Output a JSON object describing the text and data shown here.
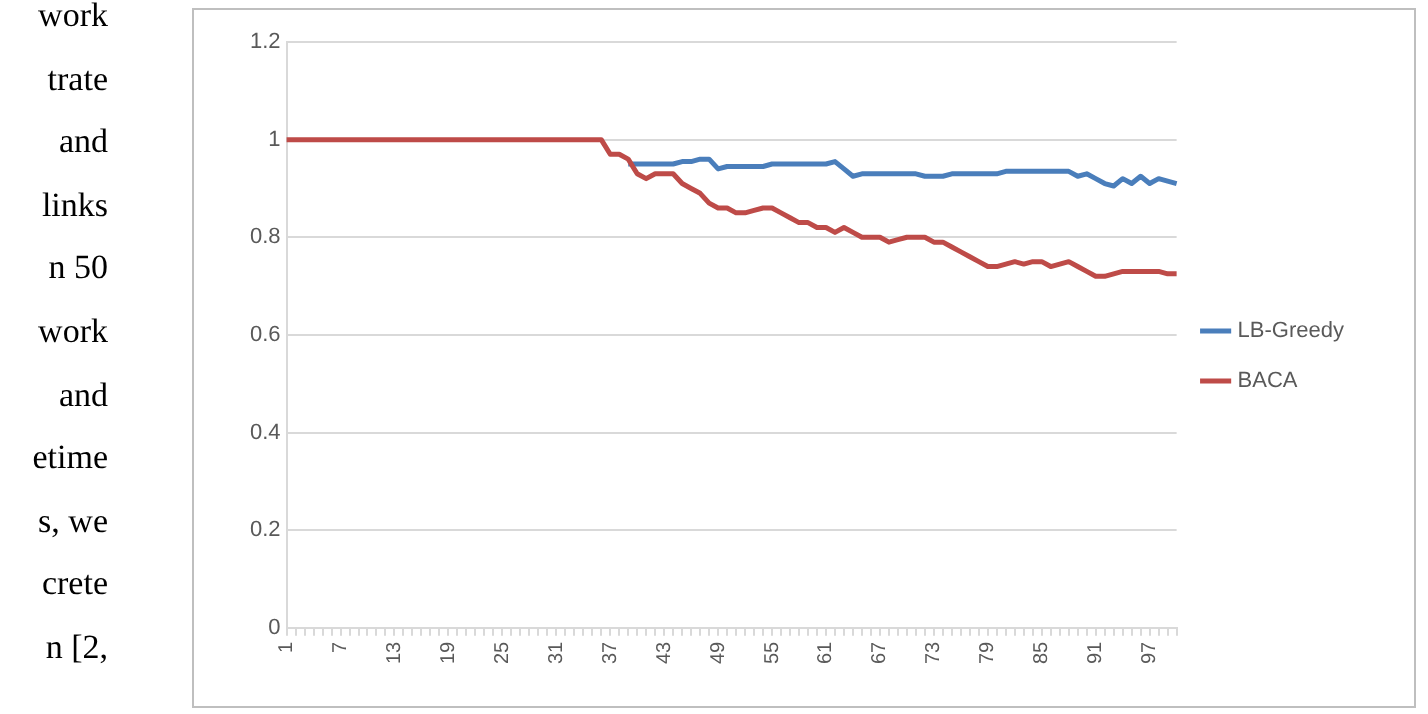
{
  "chart_data": {
    "type": "line",
    "categories": [
      "1",
      null,
      null,
      null,
      null,
      null,
      "7",
      null,
      null,
      null,
      null,
      null,
      "13",
      null,
      null,
      null,
      null,
      null,
      "19",
      null,
      null,
      null,
      null,
      null,
      "25",
      null,
      null,
      null,
      null,
      null,
      "31",
      null,
      null,
      null,
      null,
      null,
      "37",
      null,
      null,
      null,
      null,
      null,
      "43",
      null,
      null,
      null,
      null,
      null,
      "49",
      null,
      null,
      null,
      null,
      null,
      "55",
      null,
      null,
      null,
      null,
      null,
      "61",
      null,
      null,
      null,
      null,
      null,
      "67",
      null,
      null,
      null,
      null,
      null,
      "73",
      null,
      null,
      null,
      null,
      null,
      "79",
      null,
      null,
      null,
      null,
      null,
      "85",
      null,
      null,
      null,
      null,
      null,
      "91",
      null,
      null,
      null,
      null,
      null,
      "97",
      null,
      null,
      null
    ],
    "series": [
      {
        "name": "LB-Greedy",
        "color": "#4a7ebb",
        "values": [
          null,
          null,
          null,
          null,
          null,
          null,
          null,
          null,
          null,
          null,
          null,
          null,
          null,
          null,
          null,
          null,
          null,
          null,
          null,
          null,
          null,
          null,
          null,
          null,
          null,
          null,
          null,
          null,
          null,
          null,
          null,
          null,
          null,
          null,
          null,
          null,
          null,
          null,
          0.95,
          0.95,
          0.95,
          0.95,
          0.95,
          0.95,
          0.955,
          0.955,
          0.96,
          0.96,
          0.94,
          0.945,
          0.945,
          0.945,
          0.945,
          0.945,
          0.95,
          0.95,
          0.95,
          0.95,
          0.95,
          0.95,
          0.95,
          0.955,
          0.94,
          0.925,
          0.93,
          0.93,
          0.93,
          0.93,
          0.93,
          0.93,
          0.93,
          0.925,
          0.925,
          0.925,
          0.93,
          0.93,
          0.93,
          0.93,
          0.93,
          0.93,
          0.935,
          0.935,
          0.935,
          0.935,
          0.935,
          0.935,
          0.935,
          0.935,
          0.925,
          0.93,
          0.92,
          0.91,
          0.905,
          0.92,
          0.91,
          0.925,
          0.91,
          0.92,
          0.915,
          0.91
        ]
      },
      {
        "name": "BACA",
        "color": "#be4b48",
        "values": [
          1,
          1,
          1,
          1,
          1,
          1,
          1,
          1,
          1,
          1,
          1,
          1,
          1,
          1,
          1,
          1,
          1,
          1,
          1,
          1,
          1,
          1,
          1,
          1,
          1,
          1,
          1,
          1,
          1,
          1,
          1,
          1,
          1,
          1,
          1,
          1,
          0.97,
          0.97,
          0.96,
          0.93,
          0.92,
          0.93,
          0.93,
          0.93,
          0.91,
          0.9,
          0.89,
          0.87,
          0.86,
          0.86,
          0.85,
          0.85,
          0.855,
          0.86,
          0.86,
          0.85,
          0.84,
          0.83,
          0.83,
          0.82,
          0.82,
          0.81,
          0.82,
          0.81,
          0.8,
          0.8,
          0.8,
          0.79,
          0.795,
          0.8,
          0.8,
          0.8,
          0.79,
          0.79,
          0.78,
          0.77,
          0.76,
          0.75,
          0.74,
          0.74,
          0.745,
          0.75,
          0.745,
          0.75,
          0.75,
          0.74,
          0.745,
          0.75,
          0.74,
          0.73,
          0.72,
          0.72,
          0.725,
          0.73,
          0.73,
          0.73,
          0.73,
          0.73,
          0.725,
          0.725
        ]
      }
    ],
    "ylim": [
      0,
      1.2
    ],
    "yticks": [
      0,
      0.2,
      0.4,
      0.6,
      0.8,
      1,
      1.2
    ],
    "grid": "y",
    "legend": "right",
    "marker": "none",
    "line_style": "solid",
    "annotations": [
      "work",
      "trate",
      "and",
      "links",
      "n 50",
      "work",
      "and",
      "etime",
      "s, we",
      "crete",
      "n [2,"
    ]
  }
}
